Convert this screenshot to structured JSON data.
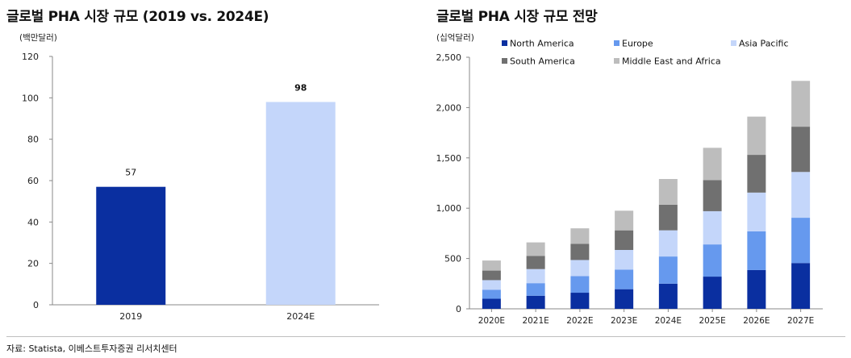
{
  "left": {
    "title": "글로벌 PHA 시장 규모 (2019 vs. 2024E)",
    "unit": "(백만달러)"
  },
  "right": {
    "title": "글로벌 PHA 시장 규모 전망",
    "unit": "(십억달러)"
  },
  "source": "자료: Statista, 이베스트투자증권 리서치센터",
  "colors": {
    "north_america": "#0A2FA0",
    "europe": "#6699EE",
    "asia_pacific": "#C4D6FA",
    "south_america": "#707070",
    "middle_east_africa": "#BDBDBD",
    "bar_2019": "#0A2FA0",
    "bar_2024": "#C4D6FA"
  },
  "chart_data": [
    {
      "type": "bar",
      "categories": [
        "2019",
        "2024E"
      ],
      "values": [
        57,
        98
      ],
      "data_labels": [
        "57",
        "98"
      ],
      "ylim": [
        0,
        120
      ],
      "yticks": [
        0,
        20,
        40,
        60,
        80,
        100,
        120
      ],
      "ytick_labels": [
        "0",
        "20",
        "40",
        "60",
        "80",
        "100",
        "120"
      ],
      "grid": false
    },
    {
      "type": "bar",
      "stacked": true,
      "categories": [
        "2020E",
        "2021E",
        "2022E",
        "2023E",
        "2024E",
        "2025E",
        "2026E",
        "2027E"
      ],
      "series": [
        {
          "name": "North America",
          "values": [
            100,
            130,
            160,
            195,
            250,
            320,
            385,
            455
          ]
        },
        {
          "name": "Europe",
          "values": [
            90,
            125,
            165,
            195,
            270,
            320,
            385,
            450
          ]
        },
        {
          "name": "Asia Pacific",
          "values": [
            95,
            140,
            160,
            195,
            260,
            330,
            385,
            455
          ]
        },
        {
          "name": "South America",
          "values": [
            95,
            130,
            160,
            195,
            255,
            310,
            375,
            450
          ]
        },
        {
          "name": "Middle East and Africa",
          "values": [
            100,
            135,
            155,
            195,
            255,
            320,
            380,
            455
          ]
        }
      ],
      "ylim": [
        0,
        2500
      ],
      "yticks": [
        0,
        500,
        1000,
        1500,
        2000,
        2500
      ],
      "ytick_labels": [
        "0",
        "500",
        "1,000",
        "1,500",
        "2,000",
        "2,500"
      ],
      "legend_position": "top",
      "grid": false
    }
  ]
}
